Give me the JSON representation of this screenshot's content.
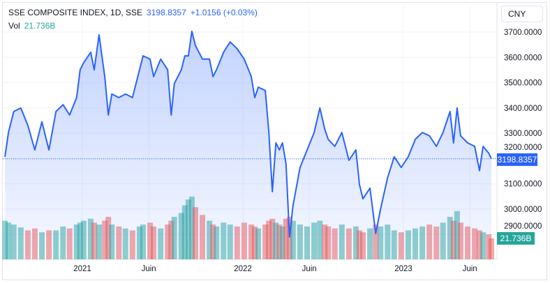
{
  "header": {
    "symbol": "SSE COMPOSITE INDEX, 1D, SSE",
    "last_price": "3198.8357",
    "change": "+1.0156 (+0.03%)",
    "vol_label": "Vol",
    "vol_value": "21.736B"
  },
  "currency_button": "CNY",
  "price_axis_label": "3198.8357",
  "volume_axis_label": "21.736B",
  "colors": {
    "line": "#2962ff",
    "up": "#26a69a",
    "down": "#ef5350",
    "grid": "#f0f3fa"
  },
  "chart_data": {
    "type": "area",
    "title": "SSE COMPOSITE INDEX, 1D, SSE",
    "ylim": [
      2860,
      3730
    ],
    "grid": true,
    "y_ticks": [
      "3700.0000",
      "3600.0000",
      "3500.0000",
      "3400.0000",
      "3300.0000",
      "3200.0000",
      "3100.0000",
      "3000.0000",
      "2900.0000"
    ],
    "x_ticks": [
      {
        "label": "2021",
        "date": "2021-01-01"
      },
      {
        "label": "Juin",
        "date": "2021-06-01"
      },
      {
        "label": "2022",
        "date": "2022-01-01"
      },
      {
        "label": "Juin",
        "date": "2022-06-01"
      },
      {
        "label": "2023",
        "date": "2023-01-01"
      },
      {
        "label": "Juin",
        "date": "2023-06-01"
      }
    ],
    "last_value": 3198.8357,
    "series": [
      {
        "type": "line",
        "dates": [
          "2020-07-09",
          "2020-07-17",
          "2020-07-29",
          "2020-08-14",
          "2020-08-30",
          "2020-09-15",
          "2020-10-01",
          "2020-10-17",
          "2020-11-02",
          "2020-11-18",
          "2020-12-03",
          "2020-12-19",
          "2020-12-27",
          "2021-01-04",
          "2021-01-20",
          "2021-01-28",
          "2021-02-08",
          "2021-02-21",
          "2021-03-01",
          "2021-03-09",
          "2021-03-25",
          "2021-04-09",
          "2021-04-25",
          "2021-05-11",
          "2021-05-19",
          "2021-06-04",
          "2021-06-12",
          "2021-06-28",
          "2021-07-14",
          "2021-07-22",
          "2021-07-29",
          "2021-08-14",
          "2021-08-22",
          "2021-08-30",
          "2021-09-07",
          "2021-09-15",
          "2021-10-01",
          "2021-10-17",
          "2021-10-25",
          "2021-11-02",
          "2021-11-18",
          "2021-12-03",
          "2021-12-19",
          "2022-01-04",
          "2022-01-20",
          "2022-01-28",
          "2022-02-05",
          "2022-02-21",
          "2022-03-01",
          "2022-03-09",
          "2022-03-17",
          "2022-03-25",
          "2022-04-01",
          "2022-04-09",
          "2022-04-17",
          "2022-04-25",
          "2022-05-11",
          "2022-05-27",
          "2022-06-12",
          "2022-06-25",
          "2022-07-06",
          "2022-07-14",
          "2022-07-29",
          "2022-08-14",
          "2022-08-30",
          "2022-09-15",
          "2022-09-23",
          "2022-10-01",
          "2022-10-17",
          "2022-10-30",
          "2022-11-10",
          "2022-11-26",
          "2022-12-11",
          "2022-12-27",
          "2023-01-12",
          "2023-01-28",
          "2023-02-13",
          "2023-03-01",
          "2023-03-17",
          "2023-04-01",
          "2023-04-17",
          "2023-04-25",
          "2023-05-03",
          "2023-05-11",
          "2023-05-27",
          "2023-06-12",
          "2023-06-23",
          "2023-07-01",
          "2023-07-14",
          "2023-07-20"
        ],
        "values": [
          3207,
          3303,
          3386,
          3400,
          3331,
          3234,
          3345,
          3234,
          3386,
          3413,
          3372,
          3441,
          3551,
          3579,
          3620,
          3551,
          3689,
          3524,
          3372,
          3455,
          3441,
          3455,
          3441,
          3551,
          3606,
          3593,
          3524,
          3593,
          3551,
          3372,
          3496,
          3551,
          3606,
          3606,
          3703,
          3648,
          3593,
          3593,
          3524,
          3551,
          3620,
          3661,
          3634,
          3593,
          3524,
          3441,
          3482,
          3469,
          3303,
          3069,
          3262,
          3234,
          3262,
          3179,
          2890,
          3014,
          3165,
          3234,
          3303,
          3400,
          3317,
          3276,
          3248,
          3303,
          3193,
          3234,
          3097,
          3041,
          3083,
          2904,
          3000,
          3124,
          3207,
          3165,
          3207,
          3276,
          3303,
          3290,
          3248,
          3303,
          3386,
          3262,
          3400,
          3290,
          3262,
          3248,
          3152,
          3248,
          3221,
          3199
        ]
      },
      {
        "type": "volume",
        "unit": "B",
        "values": [
          40,
          38,
          36,
          33,
          30,
          32,
          28,
          30,
          30,
          34,
          32,
          36,
          38,
          40,
          42,
          38,
          36,
          40,
          44,
          36,
          34,
          32,
          30,
          34,
          36,
          38,
          34,
          32,
          36,
          40,
          44,
          48,
          56,
          62,
          65,
          54,
          46,
          40,
          36,
          34,
          38,
          36,
          34,
          38,
          36,
          34,
          32,
          36,
          40,
          42,
          38,
          36,
          34,
          42,
          44,
          40,
          36,
          34,
          38,
          40,
          36,
          34,
          32,
          36,
          32,
          34,
          30,
          28,
          32,
          36,
          34,
          36,
          30,
          28,
          30,
          32,
          34,
          36,
          34,
          38,
          44,
          40,
          50,
          38,
          34,
          32,
          30,
          28,
          26,
          21.736
        ]
      }
    ]
  }
}
